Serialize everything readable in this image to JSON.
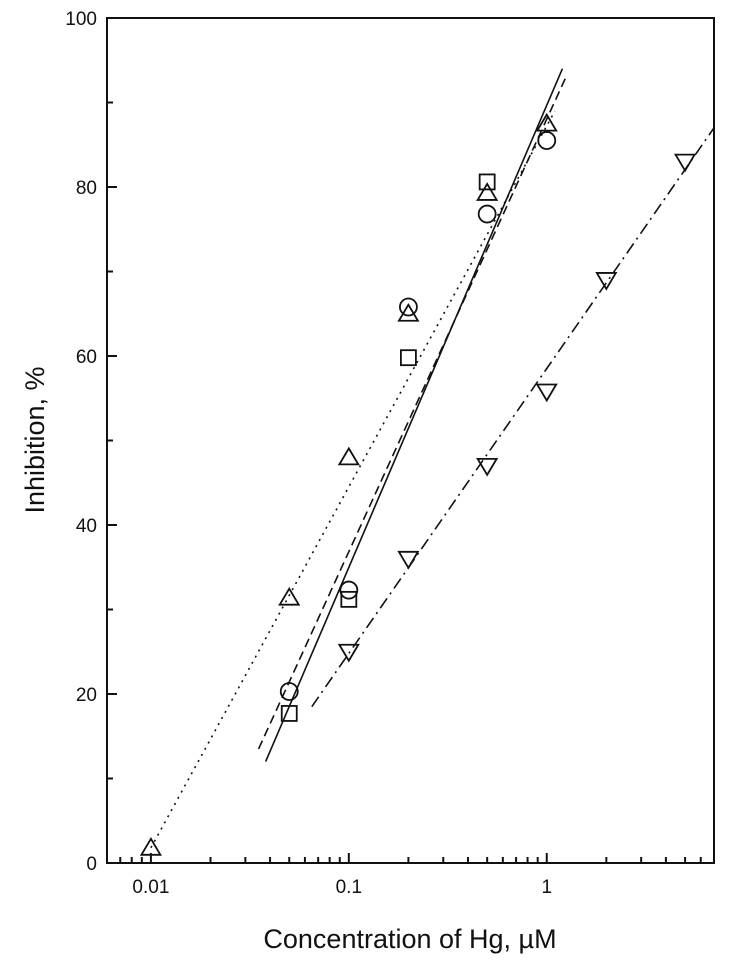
{
  "chart_data": {
    "type": "scatter",
    "title": "",
    "xlabel": "Concentration of Hg, µM",
    "ylabel": "Inhibition, %",
    "x_scale": "log",
    "xlim": [
      0.006,
      7
    ],
    "ylim": [
      0,
      100
    ],
    "x_ticks": [
      0.01,
      0.1,
      1
    ],
    "x_tick_labels": [
      "0.01",
      "0.1",
      "1"
    ],
    "y_ticks": [
      0,
      20,
      40,
      60,
      80,
      100
    ],
    "y_tick_labels": [
      "0",
      "20",
      "40",
      "60",
      "80",
      "100"
    ],
    "grid": false,
    "legend": "none",
    "series": [
      {
        "marker": "circle",
        "line_style": "solid",
        "x": [
          0.05,
          0.1,
          0.2,
          0.5,
          1.0
        ],
        "y": [
          20.3,
          32.3,
          65.8,
          76.8,
          85.5
        ],
        "fit": {
          "x": [
            0.038,
            1.2
          ],
          "y": [
            12,
            94
          ]
        }
      },
      {
        "marker": "square",
        "line_style": "dashed",
        "x": [
          0.05,
          0.1,
          0.2,
          0.5
        ],
        "y": [
          17.7,
          31.2,
          59.8,
          80.6
        ],
        "fit": {
          "x": [
            0.035,
            1.25
          ],
          "y": [
            13.5,
            93
          ]
        }
      },
      {
        "marker": "triangle-up",
        "line_style": "dotted",
        "x": [
          0.01,
          0.05,
          0.1,
          0.2,
          0.5,
          1.0
        ],
        "y": [
          1.8,
          31.4,
          48.0,
          65.0,
          79.3,
          87.5
        ],
        "fit": {
          "x": [
            0.01,
            1.1
          ],
          "y": [
            1.8,
            89
          ]
        }
      },
      {
        "marker": "triangle-down",
        "line_style": "dashdot",
        "x": [
          0.1,
          0.2,
          0.5,
          1.0,
          2.0,
          5.0
        ],
        "y": [
          25.0,
          36.0,
          47.0,
          55.8,
          69.0,
          83.0
        ],
        "fit": {
          "x": [
            0.065,
            7
          ],
          "y": [
            18.5,
            87
          ]
        }
      }
    ]
  }
}
